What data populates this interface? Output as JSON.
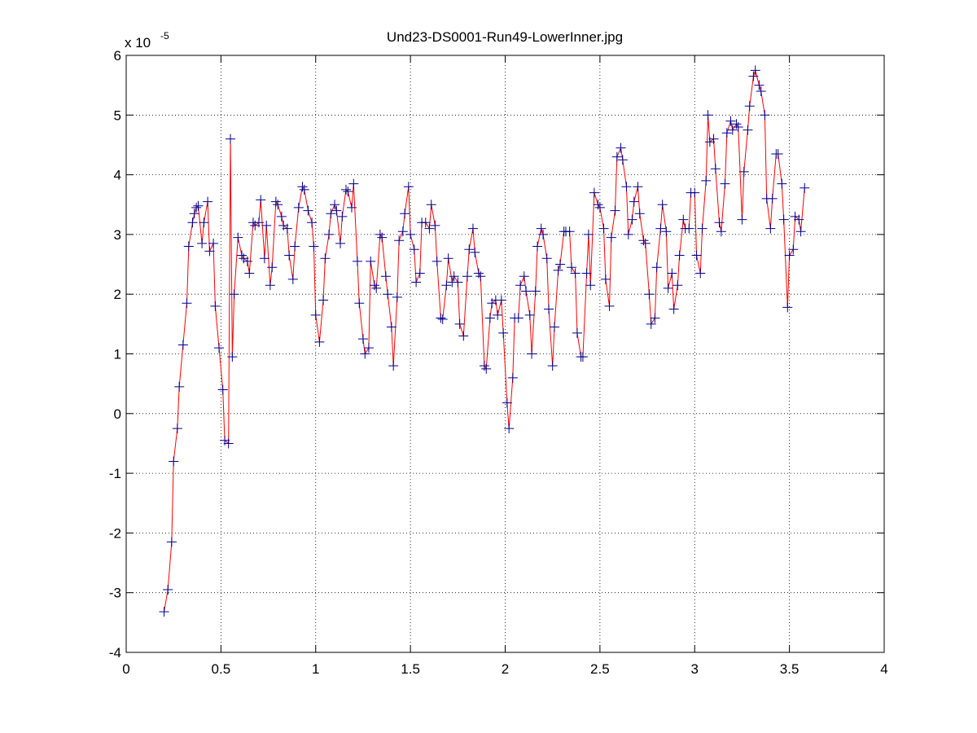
{
  "chart_data": {
    "type": "line",
    "title": "Und23-DS0001-Run49-LowerInner.jpg",
    "exponent_base": "x 10",
    "exponent_power": "-5",
    "xlim": [
      0,
      4
    ],
    "ylim": [
      -4,
      6
    ],
    "xticks": [
      0,
      0.5,
      1,
      1.5,
      2,
      2.5,
      3,
      3.5,
      4
    ],
    "yticks": [
      -4,
      -3,
      -2,
      -1,
      0,
      1,
      2,
      3,
      4,
      5,
      6
    ],
    "grid": true,
    "line_color": "#ff0000",
    "marker_color": "#00008b",
    "x": [
      0.2,
      0.22,
      0.24,
      0.25,
      0.27,
      0.28,
      0.3,
      0.32,
      0.33,
      0.35,
      0.36,
      0.37,
      0.38,
      0.4,
      0.41,
      0.43,
      0.44,
      0.46,
      0.47,
      0.49,
      0.51,
      0.52,
      0.54,
      0.55,
      0.56,
      0.57,
      0.59,
      0.61,
      0.62,
      0.64,
      0.65,
      0.67,
      0.68,
      0.7,
      0.71,
      0.73,
      0.74,
      0.76,
      0.77,
      0.79,
      0.8,
      0.82,
      0.83,
      0.85,
      0.86,
      0.88,
      0.89,
      0.91,
      0.93,
      0.94,
      0.96,
      0.98,
      0.99,
      1.0,
      1.02,
      1.04,
      1.05,
      1.07,
      1.08,
      1.1,
      1.11,
      1.13,
      1.14,
      1.16,
      1.17,
      1.19,
      1.2,
      1.22,
      1.23,
      1.25,
      1.26,
      1.28,
      1.29,
      1.31,
      1.32,
      1.34,
      1.35,
      1.37,
      1.38,
      1.4,
      1.41,
      1.43,
      1.44,
      1.46,
      1.47,
      1.49,
      1.5,
      1.52,
      1.53,
      1.55,
      1.56,
      1.58,
      1.6,
      1.61,
      1.63,
      1.64,
      1.66,
      1.67,
      1.69,
      1.7,
      1.72,
      1.73,
      1.75,
      1.76,
      1.78,
      1.8,
      1.81,
      1.83,
      1.84,
      1.86,
      1.87,
      1.89,
      1.9,
      1.92,
      1.93,
      1.95,
      1.96,
      1.98,
      1.99,
      2.01,
      2.02,
      2.04,
      2.05,
      2.07,
      2.08,
      2.1,
      2.11,
      2.13,
      2.14,
      2.16,
      2.17,
      2.19,
      2.2,
      2.22,
      2.23,
      2.25,
      2.26,
      2.28,
      2.29,
      2.31,
      2.32,
      2.34,
      2.35,
      2.37,
      2.38,
      2.4,
      2.41,
      2.43,
      2.44,
      2.45,
      2.47,
      2.49,
      2.5,
      2.52,
      2.53,
      2.55,
      2.56,
      2.58,
      2.59,
      2.61,
      2.62,
      2.64,
      2.65,
      2.67,
      2.68,
      2.7,
      2.71,
      2.73,
      2.74,
      2.76,
      2.77,
      2.79,
      2.8,
      2.82,
      2.83,
      2.85,
      2.86,
      2.88,
      2.89,
      2.91,
      2.92,
      2.94,
      2.95,
      2.97,
      2.98,
      3.0,
      3.01,
      3.03,
      3.04,
      3.06,
      3.07,
      3.08,
      3.1,
      3.11,
      3.13,
      3.14,
      3.16,
      3.17,
      3.19,
      3.2,
      3.22,
      3.23,
      3.25,
      3.26,
      3.28,
      3.29,
      3.31,
      3.32,
      3.34,
      3.35,
      3.37,
      3.38,
      3.4,
      3.41,
      3.43,
      3.44,
      3.46,
      3.47,
      3.49,
      3.5,
      3.52,
      3.53,
      3.55,
      3.56,
      3.58
    ],
    "values": [
      -3.32,
      -2.95,
      -2.15,
      -0.8,
      -0.25,
      0.45,
      1.15,
      1.85,
      2.8,
      3.2,
      3.35,
      3.45,
      3.48,
      2.85,
      3.2,
      3.55,
      2.72,
      2.85,
      1.8,
      1.1,
      0.4,
      -0.45,
      -0.5,
      4.6,
      0.95,
      2.0,
      2.95,
      2.65,
      2.6,
      2.55,
      2.35,
      3.2,
      3.15,
      3.2,
      3.58,
      2.6,
      3.15,
      2.15,
      2.45,
      3.55,
      3.5,
      3.3,
      3.15,
      3.1,
      2.65,
      2.25,
      2.8,
      3.45,
      3.8,
      3.75,
      3.4,
      3.2,
      2.8,
      1.65,
      1.2,
      1.9,
      2.6,
      3.0,
      3.35,
      3.5,
      3.4,
      2.85,
      3.3,
      3.75,
      3.72,
      3.45,
      3.85,
      2.55,
      1.85,
      1.25,
      1.0,
      1.1,
      2.55,
      2.15,
      2.1,
      3.0,
      2.95,
      2.3,
      2.0,
      1.45,
      0.8,
      1.95,
      2.9,
      3.05,
      3.35,
      3.8,
      3.0,
      2.75,
      2.2,
      2.35,
      3.2,
      3.2,
      3.1,
      3.5,
      3.15,
      2.55,
      1.6,
      1.58,
      2.15,
      2.6,
      2.2,
      2.3,
      2.2,
      1.5,
      1.3,
      2.3,
      2.75,
      3.1,
      2.7,
      2.35,
      2.3,
      0.8,
      0.75,
      1.6,
      1.85,
      1.9,
      1.65,
      1.9,
      1.35,
      0.18,
      -0.25,
      0.6,
      1.6,
      1.6,
      2.15,
      2.3,
      2.05,
      1.65,
      1.0,
      2.05,
      2.8,
      3.1,
      3.0,
      2.6,
      1.75,
      0.8,
      1.45,
      2.4,
      2.5,
      3.05,
      3.05,
      3.05,
      2.45,
      2.35,
      1.35,
      0.95,
      0.95,
      2.35,
      3.0,
      2.15,
      3.7,
      3.5,
      3.45,
      3.1,
      2.25,
      1.8,
      2.95,
      3.4,
      4.3,
      4.45,
      4.25,
      3.8,
      3.0,
      3.25,
      3.55,
      3.8,
      3.35,
      2.9,
      2.85,
      2.0,
      1.5,
      1.6,
      2.45,
      3.1,
      3.5,
      3.05,
      2.1,
      2.35,
      1.75,
      2.15,
      2.65,
      3.25,
      3.1,
      3.1,
      3.7,
      3.7,
      2.65,
      2.35,
      3.1,
      3.9,
      5.0,
      4.55,
      4.6,
      4.1,
      3.2,
      3.05,
      3.85,
      4.7,
      4.9,
      4.75,
      4.85,
      4.8,
      3.25,
      4.05,
      4.75,
      5.15,
      5.65,
      5.75,
      5.5,
      5.4,
      5.0,
      3.6,
      3.1,
      3.6,
      4.35,
      4.35,
      3.85,
      3.25,
      1.78,
      2.65,
      2.75,
      3.3,
      3.25,
      3.05,
      3.78
    ]
  }
}
